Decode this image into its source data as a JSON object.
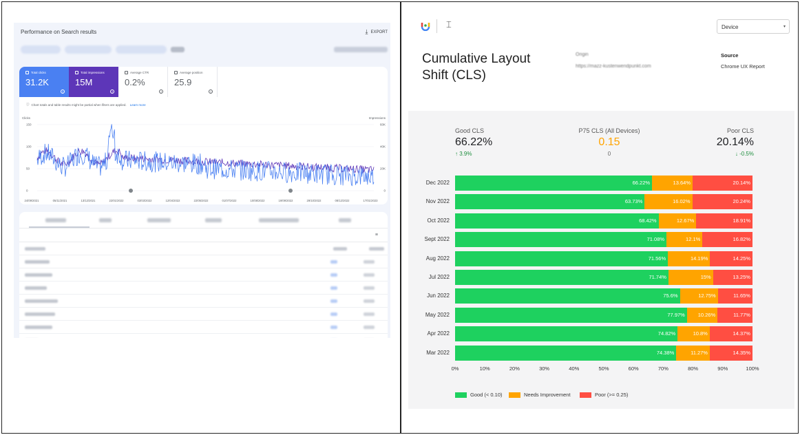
{
  "left": {
    "title": "Performance on Search results",
    "export_label": "EXPORT",
    "export_icon": "download-icon",
    "metrics": [
      {
        "label": "Total clicks",
        "value": "31.2K",
        "selected": true
      },
      {
        "label": "Total impressions",
        "value": "15M",
        "selected": true
      },
      {
        "label": "Average CTR",
        "value": "0.2%",
        "selected": false
      },
      {
        "label": "Average position",
        "value": "25.9",
        "selected": false
      }
    ],
    "notice": "Chart totals and table results might be partial when filters are applied.",
    "notice_link": "Learn more",
    "chart": {
      "left_axis_title": "Clicks",
      "right_axis_title": "Impressions",
      "left_ticks": [
        "150",
        "100",
        "50",
        "0"
      ],
      "right_ticks": [
        "60K",
        "40K",
        "20K",
        "0"
      ],
      "x_ticks": [
        "24/09/2021",
        "05/11/2021",
        "13/12/2021",
        "22/01/2022",
        "03/03/2022",
        "12/04/2022",
        "22/05/2022",
        "01/07/2022",
        "10/08/2022",
        "19/09/2022",
        "29/10/2022",
        "08/12/2022",
        "17/01/2023"
      ],
      "colors": {
        "clicks": "#4a80f2",
        "impressions": "#5d36b8"
      }
    }
  },
  "right": {
    "title": "Cumulative Layout Shift (CLS)",
    "origin_label": "Origin",
    "origin_url": "https://mazz-kustenwendpunkt.com",
    "source_label": "Source",
    "source_value": "Chrome UX Report",
    "device_select": "Device",
    "stats": {
      "good": {
        "label": "Good CLS",
        "value": "66.22%",
        "delta": "3.9%",
        "delta_dir": "up"
      },
      "p75": {
        "label": "P75 CLS (All Devices)",
        "value": "0.15",
        "delta": "0"
      },
      "poor": {
        "label": "Poor CLS",
        "value": "20.14%",
        "delta": "-0.5%",
        "delta_dir": "down"
      }
    },
    "colors": {
      "good": "#1ed15f",
      "needs": "#ffa400",
      "poor": "#ff4e42",
      "p75": "#ffa400",
      "delta_good": "#1e8e3e"
    },
    "legend": [
      "Good (< 0.10)",
      "Needs Improvement",
      "Poor (>= 0.25)"
    ]
  },
  "chart_data": {
    "type": "bar",
    "orientation": "horizontal-stacked-100",
    "categories": [
      "Dec 2022",
      "Nov 2022",
      "Oct 2022",
      "Sept 2022",
      "Aug 2022",
      "Jul 2022",
      "Jun 2022",
      "May 2022",
      "Apr 2022",
      "Mar 2022"
    ],
    "series": [
      {
        "name": "Good (< 0.10)",
        "values": [
          66.22,
          63.73,
          68.42,
          71.08,
          71.56,
          71.74,
          75.6,
          77.97,
          74.82,
          74.38
        ],
        "labels": [
          "66.22%",
          "63.73%",
          "68.42%",
          "71.08%",
          "71.56%",
          "71.74%",
          "75.6%",
          "77.97%",
          "74.82%",
          "74.38%"
        ]
      },
      {
        "name": "Needs Improvement",
        "values": [
          13.64,
          16.02,
          12.67,
          12.1,
          14.19,
          15,
          12.75,
          10.26,
          10.8,
          11.27
        ],
        "labels": [
          "13.64%",
          "16.02%",
          "12.67%",
          "12.1%",
          "14.19%",
          "15%",
          "12.75%",
          "10.26%",
          "10.8%",
          "11.27%"
        ]
      },
      {
        "name": "Poor (>= 0.25)",
        "values": [
          20.14,
          20.24,
          18.91,
          16.82,
          14.25,
          13.25,
          11.65,
          11.77,
          14.37,
          14.35
        ],
        "labels": [
          "20.14%",
          "20.24%",
          "18.91%",
          "16.82%",
          "14.25%",
          "13.25%",
          "11.65%",
          "11.77%",
          "14.37%",
          "14.35%"
        ]
      }
    ],
    "x_ticks": [
      "0%",
      "10%",
      "20%",
      "30%",
      "40%",
      "50%",
      "60%",
      "70%",
      "80%",
      "90%",
      "100%"
    ],
    "xlim": [
      0,
      100
    ],
    "legend_position": "bottom"
  }
}
